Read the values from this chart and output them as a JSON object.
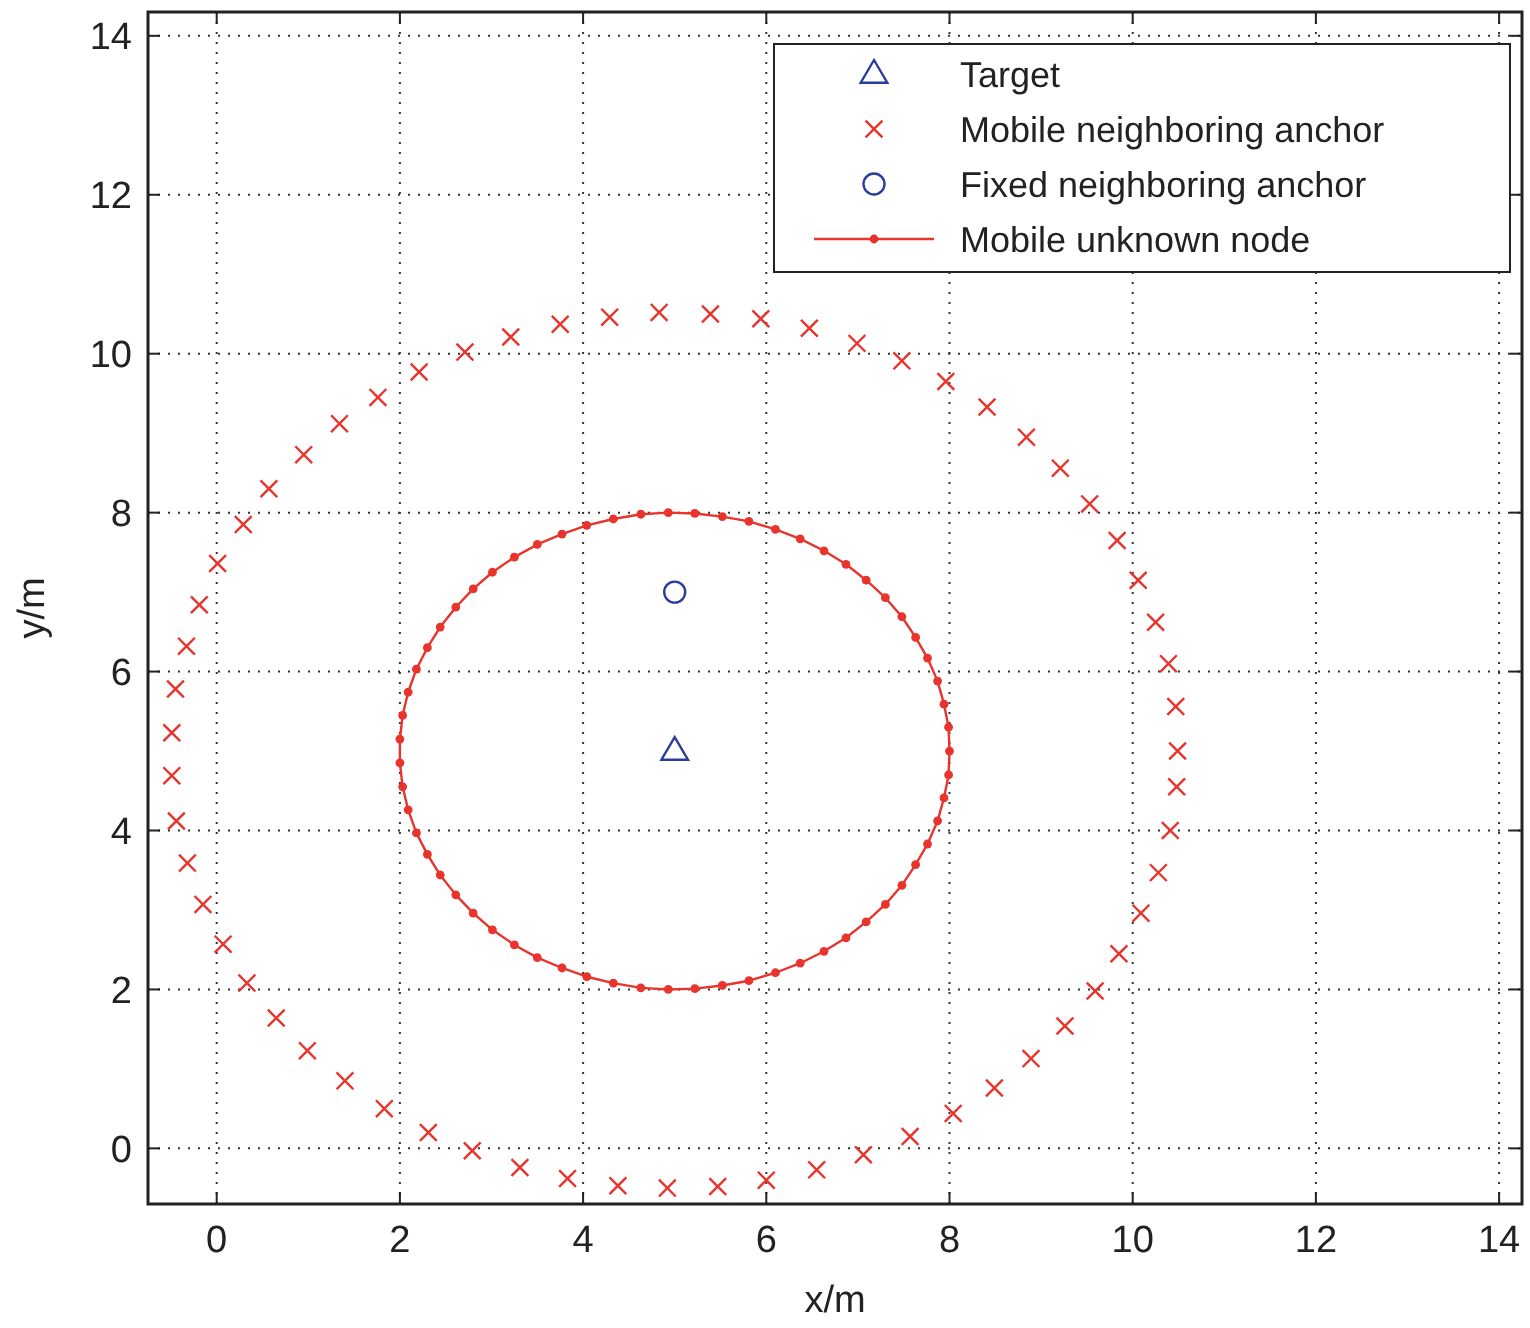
{
  "chart_data": {
    "type": "scatter",
    "xlabel": "x/m",
    "ylabel": "y/m",
    "xlim": [
      -0.75,
      14.25
    ],
    "ylim": [
      -0.7,
      14.3
    ],
    "xticks": [
      0,
      2,
      4,
      6,
      8,
      10,
      12,
      14
    ],
    "yticks": [
      0,
      2,
      4,
      6,
      8,
      10,
      12,
      14
    ],
    "grid": true,
    "legend": "top right",
    "series": [
      {
        "name": "Target",
        "marker": "triangle",
        "color": "#2c3c9c",
        "x": [
          5
        ],
        "values": [
          5
        ]
      },
      {
        "name": "Mobile neighboring anchor",
        "marker": "cross",
        "color": "#e8342c",
        "x": [
          -0.49,
          -0.49,
          -0.44,
          -0.32,
          -0.15,
          0.07,
          0.33,
          0.65,
          0.99,
          1.4,
          1.83,
          2.31,
          2.79,
          3.31,
          3.83,
          4.38,
          4.92,
          5.47,
          6.0,
          6.55,
          7.06,
          7.57,
          8.04,
          8.49,
          8.89,
          9.26,
          9.59,
          9.85,
          10.09,
          10.28,
          10.41,
          10.48,
          10.49,
          10.47,
          10.39,
          10.25,
          10.06,
          9.83,
          9.53,
          9.21,
          8.84,
          8.41,
          7.96,
          7.48,
          6.99,
          6.47,
          5.94,
          5.39,
          4.83,
          4.29,
          3.75,
          3.21,
          2.71,
          2.21,
          1.76,
          1.34,
          0.95,
          0.57,
          0.29,
          0.01,
          -0.19,
          -0.33,
          -0.45
        ],
        "values": [
          5.23,
          4.69,
          4.12,
          3.59,
          3.07,
          2.57,
          2.08,
          1.64,
          1.23,
          0.85,
          0.5,
          0.2,
          -0.03,
          -0.24,
          -0.38,
          -0.47,
          -0.5,
          -0.48,
          -0.4,
          -0.27,
          -0.08,
          0.15,
          0.44,
          0.76,
          1.13,
          1.54,
          1.98,
          2.45,
          2.96,
          3.47,
          4.0,
          4.55,
          5.0,
          5.56,
          6.1,
          6.62,
          7.15,
          7.65,
          8.11,
          8.56,
          8.95,
          9.33,
          9.65,
          9.91,
          10.13,
          10.32,
          10.44,
          10.5,
          10.52,
          10.46,
          10.37,
          10.21,
          10.02,
          9.77,
          9.45,
          9.12,
          8.73,
          8.3,
          7.85,
          7.36,
          6.84,
          6.32,
          5.78
        ]
      },
      {
        "name": "Fixed neighboring anchor",
        "marker": "circle",
        "color": "#2c3c9c",
        "x": [
          5
        ],
        "values": [
          7
        ]
      },
      {
        "name": "Mobile unknown node",
        "marker": "circle",
        "line_style": "solid",
        "color": "#e8342c",
        "x": [
          8.0,
          7.99,
          7.94,
          7.87,
          7.76,
          7.63,
          7.48,
          7.3,
          7.09,
          6.87,
          6.63,
          6.37,
          6.1,
          5.81,
          5.52,
          5.22,
          4.93,
          4.63,
          4.33,
          4.04,
          3.77,
          3.5,
          3.25,
          3.01,
          2.8,
          2.61,
          2.44,
          2.3,
          2.18,
          2.09,
          2.03,
          2.0,
          2.0,
          2.03,
          2.09,
          2.18,
          2.3,
          2.44,
          2.61,
          2.8,
          3.01,
          3.25,
          3.5,
          3.77,
          4.04,
          4.33,
          4.63,
          4.93,
          5.22,
          5.52,
          5.81,
          6.1,
          6.37,
          6.63,
          6.87,
          7.09,
          7.3,
          7.48,
          7.63,
          7.76,
          7.87,
          7.94,
          7.99
        ],
        "values": [
          5.0,
          5.3,
          5.59,
          5.88,
          6.17,
          6.43,
          6.69,
          6.93,
          7.15,
          7.35,
          7.52,
          7.67,
          7.79,
          7.89,
          7.95,
          7.99,
          8.0,
          7.98,
          7.92,
          7.84,
          7.73,
          7.6,
          7.44,
          7.25,
          7.04,
          6.81,
          6.56,
          6.3,
          6.03,
          5.74,
          5.45,
          5.15,
          4.85,
          4.55,
          4.26,
          3.97,
          3.7,
          3.44,
          3.19,
          2.96,
          2.75,
          2.56,
          2.4,
          2.27,
          2.16,
          2.08,
          2.02,
          2.0,
          2.01,
          2.05,
          2.11,
          2.21,
          2.33,
          2.48,
          2.65,
          2.85,
          3.07,
          3.31,
          3.57,
          3.83,
          4.12,
          4.41,
          4.7
        ]
      }
    ]
  }
}
